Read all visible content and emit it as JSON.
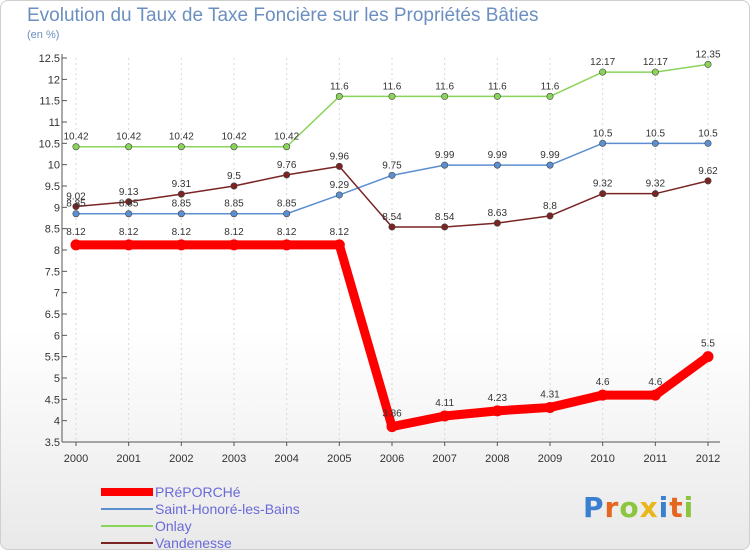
{
  "chart_data": {
    "type": "line",
    "title": "Evolution du Taux de Taxe Foncière sur les Propriétés Bâties",
    "subtitle": "(en %)",
    "x": [
      "2000",
      "2001",
      "2002",
      "2003",
      "2004",
      "2005",
      "2006",
      "2007",
      "2008",
      "2009",
      "2010",
      "2011",
      "2012"
    ],
    "ylim": [
      3.5,
      12.5
    ],
    "yticks": [
      "3.5",
      "4",
      "4.5",
      "5",
      "5.5",
      "6",
      "6.5",
      "7",
      "7.5",
      "8",
      "8.5",
      "9",
      "9.5",
      "10",
      "10.5",
      "11",
      "11.5",
      "12",
      "12.5"
    ],
    "series": [
      {
        "name": "PRéPORCHé",
        "color": "#ff0000",
        "values": [
          8.12,
          8.12,
          8.12,
          8.12,
          8.12,
          8.12,
          3.86,
          4.11,
          4.23,
          4.31,
          4.6,
          4.6,
          5.5
        ],
        "labels": [
          "8.12",
          "8.12",
          "8.12",
          "8.12",
          "8.12",
          "8.12",
          "3.86",
          "4.11",
          "4.23",
          "4.31",
          "4.6",
          "4.6",
          "5.5"
        ]
      },
      {
        "name": "Saint-Honoré-les-Bains",
        "color": "#5b8fd0",
        "values": [
          8.85,
          8.85,
          8.85,
          8.85,
          8.85,
          9.29,
          9.75,
          9.99,
          9.99,
          9.99,
          10.5,
          10.5,
          10.5
        ],
        "labels": [
          "8.85",
          "8.85",
          "8.85",
          "8.85",
          "8.85",
          "9.29",
          "9.75",
          "9.99",
          "9.99",
          "9.99",
          "10.5",
          "10.5",
          "10.5"
        ]
      },
      {
        "name": "Onlay",
        "color": "#8ad45a",
        "values": [
          10.42,
          10.42,
          10.42,
          10.42,
          10.42,
          11.6,
          11.6,
          11.6,
          11.6,
          11.6,
          12.17,
          12.17,
          12.35
        ],
        "labels": [
          "10.42",
          "10.42",
          "10.42",
          "10.42",
          "10.42",
          "11.6",
          "11.6",
          "11.6",
          "11.6",
          "11.6",
          "12.17",
          "12.17",
          "12.35"
        ]
      },
      {
        "name": "Vandenesse",
        "color": "#7a2424",
        "values": [
          9.02,
          9.13,
          9.31,
          9.5,
          9.76,
          9.96,
          8.54,
          8.54,
          8.63,
          8.8,
          9.32,
          9.32,
          9.62
        ],
        "labels": [
          "9.02",
          "9.13",
          "9.31",
          "9.5",
          "9.76",
          "9.96",
          "8.54",
          "8.54",
          "8.63",
          "8.8",
          "9.32",
          "9.32",
          "9.62"
        ]
      }
    ]
  },
  "legend": {
    "items": [
      {
        "label": "PRéPORCHé",
        "color": "#ff0000"
      },
      {
        "label": "Saint-Honoré-les-Bains",
        "color": "#5b8fd0"
      },
      {
        "label": "Onlay",
        "color": "#8ad45a"
      },
      {
        "label": "Vandenesse",
        "color": "#7a2424"
      }
    ]
  },
  "logo": {
    "text": "Proxiti"
  }
}
